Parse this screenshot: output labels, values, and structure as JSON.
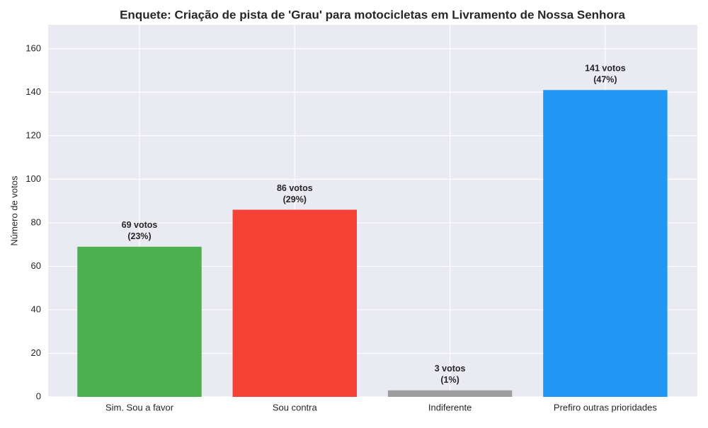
{
  "chart_data": {
    "type": "bar",
    "title": "Enquete: Criação de pista de 'Grau' para motocicletas em Livramento de Nossa Senhora",
    "ylabel": "Número de votos",
    "categories": [
      "Sim. Sou a favor",
      "Sou contra",
      "Indiferente",
      "Prefiro outras prioridades"
    ],
    "values": [
      69,
      86,
      3,
      141
    ],
    "value_labels": [
      [
        "69 votos",
        "(23%)"
      ],
      [
        "86 votos",
        "(29%)"
      ],
      [
        "3 votos",
        "(1%)"
      ],
      [
        "141 votos",
        "(47%)"
      ]
    ],
    "colors": [
      "#4caf50",
      "#f44336",
      "#9e9e9e",
      "#2196f3"
    ],
    "ylim": [
      0,
      171
    ],
    "yticks": [
      0,
      20,
      40,
      60,
      80,
      100,
      120,
      140,
      160
    ],
    "grid": true
  }
}
